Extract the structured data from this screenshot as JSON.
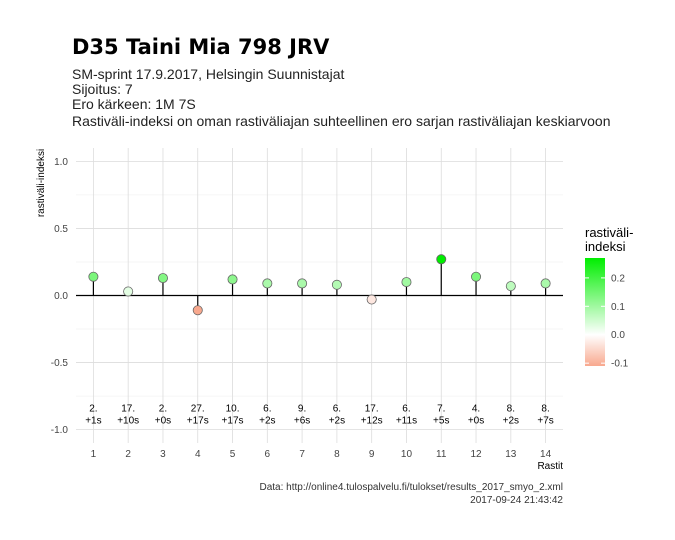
{
  "header": {
    "title": "D35 Taini Mia 798 JRV",
    "lines": [
      "SM-sprint 17.9.2017, Helsingin Suunnistajat",
      "Sijoitus: 7",
      "Ero kärkeen: 1M 7S",
      "Rastiväli-indeksi on oman rastiväliajan suhteellinen ero sarjan rastiväliajan keskiarvoon"
    ]
  },
  "caption": {
    "source": "Data: http://online4.tulospalvelu.fi/tulokset/results_2017_smyo_2.xml",
    "timestamp": "2017-09-24 21:43:42"
  },
  "chart_data": {
    "type": "scatter",
    "xlabel": "Rastit",
    "ylabel": "rastiväli-indeksi",
    "x": [
      1,
      2,
      3,
      4,
      5,
      6,
      7,
      8,
      9,
      10,
      11,
      12,
      13,
      14
    ],
    "values": [
      0.14,
      0.03,
      0.13,
      -0.11,
      0.12,
      0.09,
      0.09,
      0.08,
      -0.03,
      0.1,
      0.27,
      0.14,
      0.07,
      0.09
    ],
    "labels_top": [
      "2.",
      "17.",
      "2.",
      "27.",
      "10.",
      "6.",
      "9.",
      "6.",
      "17.",
      "6.",
      "7.",
      "4.",
      "8.",
      "8."
    ],
    "labels_bottom": [
      "+1s",
      "+10s",
      "+0s",
      "+17s",
      "+17s",
      "+2s",
      "+6s",
      "+2s",
      "+12s",
      "+11s",
      "+5s",
      "+0s",
      "+2s",
      "+7s"
    ],
    "xticks": [
      "1",
      "2",
      "3",
      "4",
      "5",
      "6",
      "7",
      "8",
      "9",
      "10",
      "11",
      "12",
      "13",
      "14"
    ],
    "ylim": [
      -1.1,
      1.1
    ],
    "yticks": [
      -1.0,
      -0.5,
      0.0,
      0.5,
      1.0
    ],
    "ytick_labels": [
      "-1.0",
      "-0.5",
      "0.0",
      "0.5",
      "1.0"
    ],
    "grid": true,
    "legend": {
      "title_lines": [
        "rastiväli-",
        "indeksi"
      ],
      "ticks": [
        0.2,
        0.1,
        0.0,
        -0.1
      ],
      "tick_labels": [
        "0.2",
        "0.1",
        "0.0",
        "-0.1"
      ],
      "range": [
        -0.11,
        0.27
      ],
      "placement": "right"
    },
    "colors": {
      "low": "#f8a88e",
      "mid": "#ffffff",
      "high": "#00ee00"
    }
  }
}
